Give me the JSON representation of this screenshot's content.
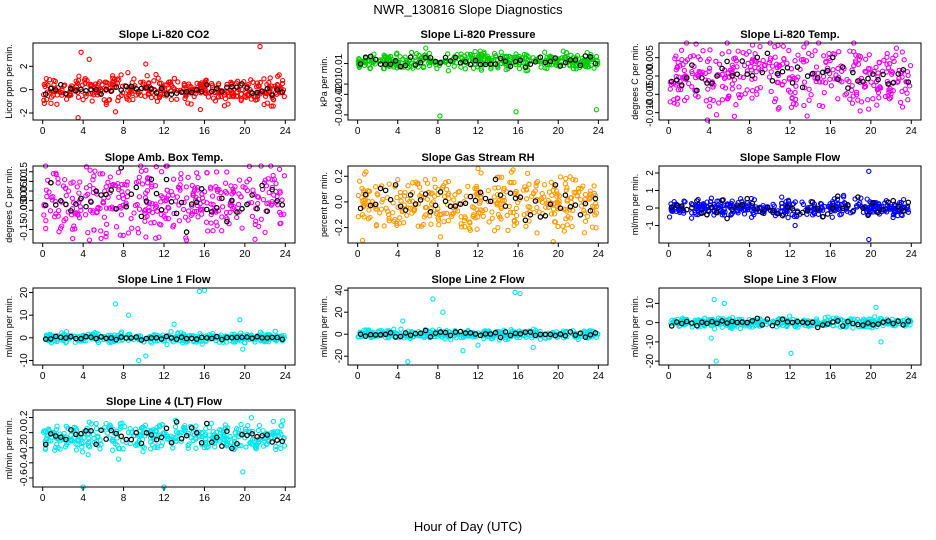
{
  "figure": {
    "title": "NWR_130816  Slope Diagnostics",
    "xlabel": "Hour of Day (UTC)"
  },
  "chart_data": [
    {
      "type": "scatter",
      "title": "Slope Li-820 CO2",
      "ylabel": "Licor ppm per min.",
      "xlim": [
        0,
        24
      ],
      "xticks": [
        0,
        4,
        8,
        12,
        16,
        20,
        24
      ],
      "ylim": [
        -2.6,
        4.0
      ],
      "yticks": [
        "-2",
        "0",
        "2"
      ],
      "ytick_values": [
        -2,
        0,
        2
      ],
      "color": "#ff0000",
      "center": 0.0,
      "spread": 0.55,
      "outliers": [
        [
          3.5,
          -2.4
        ],
        [
          3.8,
          3.2
        ],
        [
          4.6,
          2.6
        ],
        [
          7.2,
          -1.9
        ],
        [
          10.2,
          2.2
        ],
        [
          15.6,
          -1.7
        ],
        [
          21.5,
          3.7
        ],
        [
          22.8,
          -1.4
        ]
      ],
      "black_spread": 0.25
    },
    {
      "type": "scatter",
      "title": "Slope Li-820 Pressure",
      "ylabel": "kPa per min.",
      "xlim": [
        0,
        24
      ],
      "xticks": [
        0,
        4,
        8,
        12,
        16,
        20,
        24
      ],
      "ylim": [
        -0.045,
        0.03
      ],
      "yticks": [
        "-0.04",
        "-0.02",
        "-0.01",
        "0.01"
      ],
      "ytick_values": [
        -0.04,
        -0.02,
        -0.01,
        0.01
      ],
      "color": "#00cc00",
      "center": 0.012,
      "spread": 0.004,
      "outliers": [
        [
          8.2,
          -0.041
        ],
        [
          15.8,
          -0.037
        ],
        [
          23.8,
          -0.035
        ],
        [
          6.8,
          0.025
        ],
        [
          20.5,
          0.022
        ]
      ],
      "black_spread": 0.003
    },
    {
      "type": "scatter",
      "title": "Slope Li-820 Temp.",
      "ylabel": "degrees C per min.",
      "xlim": [
        0,
        24
      ],
      "xticks": [
        0,
        4,
        8,
        12,
        16,
        20,
        24
      ],
      "ylim": [
        -0.012,
        0.009
      ],
      "yticks": [
        "-0.010",
        "-0.005",
        "0.000",
        "0.005"
      ],
      "ytick_values": [
        -0.01,
        -0.005,
        0.0,
        0.005
      ],
      "color": "#ee00ee",
      "center": 0.0,
      "spread": 0.0045,
      "outliers": [
        [
          6.5,
          -0.011
        ],
        [
          10.5,
          0.008
        ]
      ],
      "black_spread": 0.003
    },
    {
      "type": "scatter",
      "title": "Slope Amb. Box Temp.",
      "ylabel": "degrees C per min.",
      "xlim": [
        0,
        24
      ],
      "xticks": [
        0,
        4,
        8,
        12,
        16,
        20,
        24
      ],
      "ylim": [
        -0.22,
        0.18
      ],
      "yticks": [
        "-0.15",
        "-0.05",
        "0.00",
        "0.05",
        "0.10",
        "0.15"
      ],
      "ytick_values": [
        -0.15,
        -0.05,
        0.0,
        0.05,
        0.1,
        0.15
      ],
      "color": "#ee00ee",
      "center": 0.0,
      "spread": 0.09,
      "outliers": [
        [
          11.5,
          -0.19
        ],
        [
          21.0,
          -0.2
        ]
      ],
      "black_spread": 0.06
    },
    {
      "type": "scatter",
      "title": "Slope Gas Stream RH",
      "ylabel": "percent per min.",
      "xlim": [
        0,
        24
      ],
      "xticks": [
        0,
        4,
        8,
        12,
        16,
        20,
        24
      ],
      "ylim": [
        -0.32,
        0.28
      ],
      "yticks": [
        "-0.2",
        "0.0",
        "0.2"
      ],
      "ytick_values": [
        -0.2,
        0.0,
        0.2
      ],
      "color": "#ff9900",
      "center": 0.0,
      "spread": 0.11,
      "outliers": [
        [
          0.5,
          -0.3
        ],
        [
          19.5,
          -0.31
        ],
        [
          12.0,
          0.26
        ],
        [
          15.5,
          0.25
        ]
      ],
      "black_spread": 0.08
    },
    {
      "type": "scatter",
      "title": "Slope Sample Flow",
      "ylabel": "ml/min per min.",
      "xlim": [
        0,
        24
      ],
      "xticks": [
        0,
        4,
        8,
        12,
        16,
        20,
        24
      ],
      "ylim": [
        -2.0,
        2.4
      ],
      "yticks": [
        "-1",
        "0",
        "1",
        "2"
      ],
      "ytick_values": [
        -1,
        0,
        1,
        2
      ],
      "color": "#0000ff",
      "center": 0.0,
      "spread": 0.25,
      "outliers": [
        [
          19.8,
          -1.8
        ],
        [
          19.8,
          2.1
        ],
        [
          12.5,
          -1.0
        ]
      ],
      "black_spread": 0.3
    },
    {
      "type": "scatter",
      "title": "Slope Line 1 Flow",
      "ylabel": "ml/min per min.",
      "xlim": [
        0,
        24
      ],
      "xticks": [
        0,
        4,
        8,
        12,
        16,
        20,
        24
      ],
      "ylim": [
        -12,
        22
      ],
      "yticks": [
        "-10",
        "0",
        "10",
        "20"
      ],
      "ytick_values": [
        -10,
        0,
        10,
        20
      ],
      "color": "#00e5ee",
      "center": 0.0,
      "spread": 1.0,
      "outliers": [
        [
          7.2,
          15.0
        ],
        [
          15.5,
          20.5
        ],
        [
          16.0,
          21.0
        ],
        [
          9.5,
          -10.0
        ],
        [
          10.2,
          -8.0
        ],
        [
          12.3,
          -3.0
        ],
        [
          19.5,
          8.0
        ],
        [
          19.8,
          -5.0
        ],
        [
          8.5,
          10.0
        ],
        [
          13.0,
          6.0
        ]
      ],
      "black_spread": 0.5
    },
    {
      "type": "scatter",
      "title": "Slope Line 2 Flow",
      "ylabel": "ml/min per min.",
      "xlim": [
        0,
        24
      ],
      "xticks": [
        0,
        4,
        8,
        12,
        16,
        20,
        24
      ],
      "ylim": [
        -28,
        42
      ],
      "yticks": [
        "-20",
        "0",
        "20",
        "40"
      ],
      "ytick_values": [
        -20,
        0,
        20,
        40
      ],
      "color": "#00e5ee",
      "center": 0.0,
      "spread": 2.0,
      "outliers": [
        [
          5.0,
          -25.0
        ],
        [
          7.5,
          32.0
        ],
        [
          15.7,
          38.0
        ],
        [
          16.2,
          37.0
        ],
        [
          10.5,
          -15.0
        ],
        [
          12.0,
          -10.0
        ],
        [
          8.5,
          20.0
        ],
        [
          17.5,
          -12.0
        ],
        [
          4.5,
          12.0
        ]
      ],
      "black_spread": 1.5
    },
    {
      "type": "scatter",
      "title": "Slope Line 3 Flow",
      "ylabel": "ml/min per min.",
      "xlim": [
        0,
        24
      ],
      "xticks": [
        0,
        4,
        8,
        12,
        16,
        20,
        24
      ],
      "ylim": [
        -22,
        18
      ],
      "yticks": [
        "-20",
        "-10",
        "0",
        "10"
      ],
      "ytick_values": [
        -20,
        -10,
        0,
        10
      ],
      "color": "#00e5ee",
      "center": 0.0,
      "spread": 1.2,
      "outliers": [
        [
          4.7,
          -20.0
        ],
        [
          4.5,
          12.0
        ],
        [
          5.5,
          10.0
        ],
        [
          12.1,
          -16.0
        ],
        [
          20.5,
          8.0
        ],
        [
          21.0,
          -10.0
        ],
        [
          4.2,
          -8.0
        ]
      ],
      "black_spread": 1.0
    },
    {
      "type": "scatter",
      "title": "Slope Line 4 (LT) Flow",
      "ylabel": "ml/min per min.",
      "xlim": [
        0,
        24
      ],
      "xticks": [
        0,
        4,
        8,
        12,
        16,
        20,
        24
      ],
      "ylim": [
        -0.72,
        0.3
      ],
      "yticks": [
        "-0.6",
        "-0.4",
        "-0.2",
        "0.0",
        "0.2"
      ],
      "ytick_values": [
        -0.6,
        -0.4,
        -0.2,
        0.0,
        0.2
      ],
      "color": "#00e5ee",
      "center": -0.05,
      "spread": 0.09,
      "outliers": [
        [
          4.0,
          -0.72
        ],
        [
          12.0,
          -0.72
        ],
        [
          19.8,
          -0.52
        ],
        [
          7.5,
          -0.35
        ]
      ],
      "black_spread": 0.07
    }
  ]
}
